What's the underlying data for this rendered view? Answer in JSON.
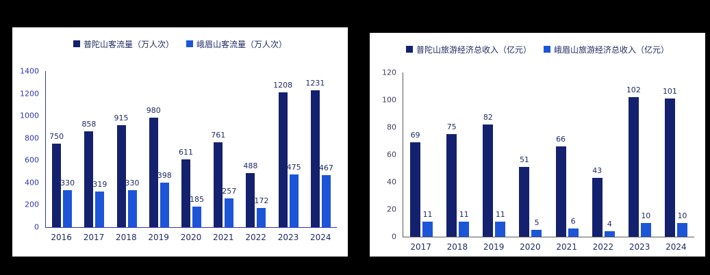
{
  "chart_data": [
    {
      "type": "bar",
      "title": "",
      "categories": [
        "2016",
        "2017",
        "2018",
        "2019",
        "2020",
        "2021",
        "2022",
        "2023",
        "2024"
      ],
      "series": [
        {
          "name": "普陀山客流量（万人次）",
          "values": [
            750,
            858,
            915,
            980,
            611,
            761,
            488,
            1208,
            1231
          ]
        },
        {
          "name": "峨眉山客流量（万人次）",
          "values": [
            330,
            319,
            330,
            398,
            185,
            257,
            172,
            475,
            467
          ]
        }
      ],
      "ylim": [
        0,
        1400
      ],
      "ytick_step": 200,
      "colors": [
        "#14216e",
        "#1c55d8"
      ],
      "legend_position": "top",
      "grid": false,
      "xlabel": "",
      "ylabel": ""
    },
    {
      "type": "bar",
      "title": "",
      "categories": [
        "2017",
        "2018",
        "2019",
        "2020",
        "2021",
        "2022",
        "2023",
        "2024"
      ],
      "series": [
        {
          "name": "普陀山旅游经济总收入（亿元）",
          "values": [
            69,
            75,
            82,
            51,
            66,
            43,
            102,
            101
          ]
        },
        {
          "name": "峨眉山旅游经济总收入（亿元）",
          "values": [
            11,
            11,
            11,
            5,
            6,
            4,
            10,
            10
          ]
        }
      ],
      "ylim": [
        0,
        120
      ],
      "ytick_step": 20,
      "colors": [
        "#14216e",
        "#1c55d8"
      ],
      "legend_position": "top",
      "grid": false,
      "xlabel": "",
      "ylabel": ""
    }
  ]
}
